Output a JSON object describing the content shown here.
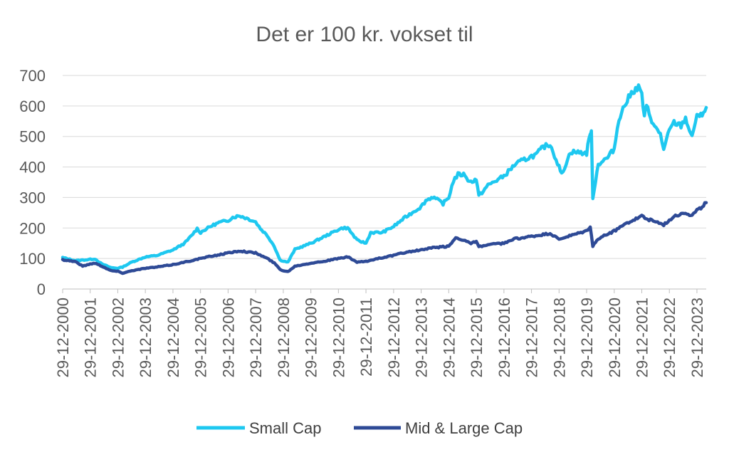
{
  "chart_data": {
    "type": "line",
    "title": "Det er 100 kr. vokset til",
    "xlabel": "",
    "ylabel": "",
    "ylim": [
      0,
      700
    ],
    "yticks": [
      0,
      100,
      200,
      300,
      400,
      500,
      600,
      700
    ],
    "x_range": [
      "2000-12-29",
      "2024-04-30"
    ],
    "xticks": [
      "29-12-2000",
      "29-12-2001",
      "29-12-2002",
      "29-12-2003",
      "29-12-2004",
      "29-12-2005",
      "29-12-2006",
      "29-12-2007",
      "29-12-2008",
      "29-12-2009",
      "29-12-2010",
      "29-12-2011",
      "29-12-2012",
      "29-12-2013",
      "29-12-2014",
      "29-12-2015",
      "29-12-2016",
      "29-12-2017",
      "29-12-2018",
      "29-12-2019",
      "29-12-2020",
      "29-12-2021",
      "29-12-2022",
      "29-12-2023"
    ],
    "grid": true,
    "legend": "bottom",
    "series": [
      {
        "name": "Small Cap",
        "color": "#1ec8f0",
        "points": [
          [
            "2000-12-29",
            103
          ],
          [
            "2001-06-15",
            93
          ],
          [
            "2001-12-29",
            97
          ],
          [
            "2002-03-01",
            99
          ],
          [
            "2002-06-01",
            82
          ],
          [
            "2002-10-01",
            70
          ],
          [
            "2002-12-29",
            68
          ],
          [
            "2003-03-01",
            72
          ],
          [
            "2003-07-01",
            88
          ],
          [
            "2003-12-29",
            105
          ],
          [
            "2004-06-01",
            110
          ],
          [
            "2004-12-29",
            128
          ],
          [
            "2005-06-01",
            150
          ],
          [
            "2005-09-01",
            175
          ],
          [
            "2005-11-15",
            198
          ],
          [
            "2005-12-29",
            185
          ],
          [
            "2006-03-01",
            195
          ],
          [
            "2006-06-01",
            208
          ],
          [
            "2006-09-01",
            218
          ],
          [
            "2006-12-29",
            225
          ],
          [
            "2007-03-01",
            235
          ],
          [
            "2007-06-01",
            240
          ],
          [
            "2007-09-01",
            232
          ],
          [
            "2007-12-29",
            220
          ],
          [
            "2008-03-01",
            198
          ],
          [
            "2008-06-01",
            175
          ],
          [
            "2008-09-01",
            140
          ],
          [
            "2008-11-15",
            95
          ],
          [
            "2008-12-29",
            92
          ],
          [
            "2009-03-01",
            88
          ],
          [
            "2009-06-01",
            130
          ],
          [
            "2009-12-29",
            150
          ],
          [
            "2010-05-01",
            165
          ],
          [
            "2010-12-29",
            195
          ],
          [
            "2011-03-01",
            200
          ],
          [
            "2011-05-01",
            200
          ],
          [
            "2011-09-01",
            160
          ],
          [
            "2011-12-29",
            150
          ],
          [
            "2012-03-01",
            185
          ],
          [
            "2012-08-01",
            185
          ],
          [
            "2012-12-29",
            205
          ],
          [
            "2013-06-01",
            235
          ],
          [
            "2013-12-29",
            270
          ],
          [
            "2014-03-01",
            290
          ],
          [
            "2014-06-01",
            302
          ],
          [
            "2014-10-15",
            280
          ],
          [
            "2014-12-29",
            300
          ],
          [
            "2015-03-01",
            355
          ],
          [
            "2015-05-01",
            375
          ],
          [
            "2015-08-01",
            375
          ],
          [
            "2015-10-01",
            350
          ],
          [
            "2015-12-29",
            360
          ],
          [
            "2016-02-01",
            305
          ],
          [
            "2016-06-01",
            340
          ],
          [
            "2016-12-29",
            370
          ],
          [
            "2017-06-01",
            410
          ],
          [
            "2017-12-29",
            435
          ],
          [
            "2018-03-01",
            440
          ],
          [
            "2018-06-01",
            465
          ],
          [
            "2018-09-01",
            475
          ],
          [
            "2018-12-29",
            400
          ],
          [
            "2019-02-01",
            375
          ],
          [
            "2019-06-01",
            450
          ],
          [
            "2019-12-29",
            445
          ],
          [
            "2020-02-15",
            515
          ],
          [
            "2020-03-01",
            510
          ],
          [
            "2020-03-20",
            300
          ],
          [
            "2020-06-01",
            410
          ],
          [
            "2020-10-01",
            430
          ],
          [
            "2020-12-29",
            460
          ],
          [
            "2021-03-01",
            560
          ],
          [
            "2021-06-01",
            610
          ],
          [
            "2021-09-01",
            650
          ],
          [
            "2021-11-15",
            660
          ],
          [
            "2021-12-29",
            640
          ],
          [
            "2022-02-01",
            560
          ],
          [
            "2022-03-01",
            600
          ],
          [
            "2022-06-15",
            530
          ],
          [
            "2022-09-01",
            510
          ],
          [
            "2022-10-15",
            455
          ],
          [
            "2022-12-29",
            520
          ],
          [
            "2023-03-01",
            545
          ],
          [
            "2023-06-01",
            535
          ],
          [
            "2023-08-01",
            560
          ],
          [
            "2023-10-25",
            495
          ],
          [
            "2023-12-29",
            575
          ],
          [
            "2024-02-01",
            560
          ],
          [
            "2024-04-30",
            595
          ]
        ]
      },
      {
        "name": "Mid & Large Cap",
        "color": "#2e4a96",
        "points": [
          [
            "2000-12-29",
            96
          ],
          [
            "2001-06-15",
            90
          ],
          [
            "2001-09-20",
            75
          ],
          [
            "2001-12-29",
            82
          ],
          [
            "2002-03-01",
            85
          ],
          [
            "2002-06-01",
            75
          ],
          [
            "2002-10-01",
            60
          ],
          [
            "2002-12-29",
            58
          ],
          [
            "2003-03-01",
            52
          ],
          [
            "2003-07-01",
            60
          ],
          [
            "2003-12-29",
            68
          ],
          [
            "2004-06-01",
            72
          ],
          [
            "2004-12-29",
            80
          ],
          [
            "2005-06-01",
            88
          ],
          [
            "2005-12-29",
            100
          ],
          [
            "2006-06-01",
            108
          ],
          [
            "2006-12-29",
            118
          ],
          [
            "2007-06-01",
            125
          ],
          [
            "2007-12-29",
            118
          ],
          [
            "2008-06-01",
            100
          ],
          [
            "2008-09-01",
            85
          ],
          [
            "2008-11-15",
            65
          ],
          [
            "2008-12-29",
            60
          ],
          [
            "2009-03-01",
            57
          ],
          [
            "2009-06-01",
            75
          ],
          [
            "2009-12-29",
            85
          ],
          [
            "2010-06-01",
            90
          ],
          [
            "2010-12-29",
            100
          ],
          [
            "2011-05-01",
            105
          ],
          [
            "2011-09-01",
            88
          ],
          [
            "2011-12-29",
            90
          ],
          [
            "2012-06-01",
            100
          ],
          [
            "2012-12-29",
            110
          ],
          [
            "2013-06-01",
            120
          ],
          [
            "2013-12-29",
            128
          ],
          [
            "2014-06-01",
            135
          ],
          [
            "2014-12-29",
            140
          ],
          [
            "2015-04-01",
            168
          ],
          [
            "2015-08-01",
            160
          ],
          [
            "2015-10-01",
            150
          ],
          [
            "2015-12-29",
            155
          ],
          [
            "2016-02-01",
            138
          ],
          [
            "2016-06-01",
            145
          ],
          [
            "2016-12-29",
            150
          ],
          [
            "2017-06-01",
            165
          ],
          [
            "2017-12-29",
            172
          ],
          [
            "2018-06-01",
            178
          ],
          [
            "2018-09-01",
            182
          ],
          [
            "2018-12-29",
            162
          ],
          [
            "2019-03-01",
            168
          ],
          [
            "2019-12-29",
            190
          ],
          [
            "2020-02-15",
            205
          ],
          [
            "2020-03-20",
            140
          ],
          [
            "2020-06-01",
            165
          ],
          [
            "2020-12-29",
            190
          ],
          [
            "2021-06-01",
            215
          ],
          [
            "2021-12-29",
            240
          ],
          [
            "2022-03-01",
            230
          ],
          [
            "2022-06-15",
            222
          ],
          [
            "2022-10-15",
            210
          ],
          [
            "2022-12-29",
            225
          ],
          [
            "2023-03-01",
            240
          ],
          [
            "2023-08-01",
            250
          ],
          [
            "2023-10-25",
            240
          ],
          [
            "2023-12-29",
            258
          ],
          [
            "2024-02-01",
            262
          ],
          [
            "2024-04-30",
            283
          ]
        ]
      }
    ]
  }
}
